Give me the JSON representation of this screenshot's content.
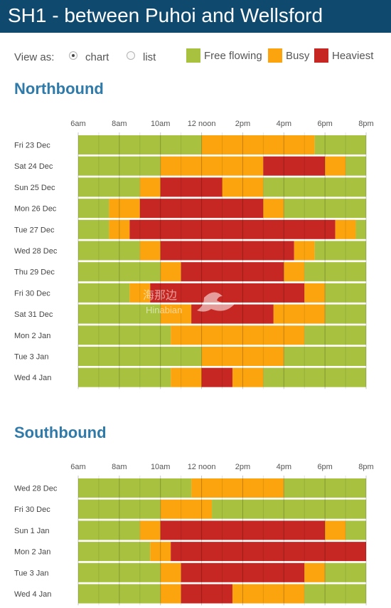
{
  "header": {
    "title": "SH1 - between Puhoi and Wellsford"
  },
  "view": {
    "label": "View as:",
    "options": [
      "chart",
      "list"
    ],
    "selected": "chart"
  },
  "legend": [
    {
      "label": "Free flowing",
      "color": "#a8c23f"
    },
    {
      "label": "Busy",
      "color": "#fca40e"
    },
    {
      "label": "Heaviest",
      "color": "#c62722"
    }
  ],
  "watermark": {
    "line1": "海那边",
    "line2": "Hinabian"
  },
  "chart_data": [
    {
      "type": "heatmap",
      "title": "Northbound",
      "x_ticks": [
        "6am",
        "8am",
        "10am",
        "12 noon",
        "2pm",
        "4pm",
        "6pm",
        "8pm"
      ],
      "x_range_hours": [
        6,
        20
      ],
      "levels": {
        "free": "Free flowing",
        "busy": "Busy",
        "heavy": "Heaviest"
      },
      "rows": [
        {
          "label": "Fri 23 Dec",
          "segments": [
            [
              6,
              12,
              "free"
            ],
            [
              12,
              17.5,
              "busy"
            ],
            [
              17.5,
              20,
              "free"
            ]
          ]
        },
        {
          "label": "Sat 24 Dec",
          "segments": [
            [
              6,
              10,
              "free"
            ],
            [
              10,
              15,
              "busy"
            ],
            [
              15,
              18,
              "heavy"
            ],
            [
              18,
              19,
              "busy"
            ],
            [
              19,
              20,
              "free"
            ]
          ]
        },
        {
          "label": "Sun 25 Dec",
          "segments": [
            [
              6,
              9,
              "free"
            ],
            [
              9,
              10,
              "busy"
            ],
            [
              10,
              13,
              "heavy"
            ],
            [
              13,
              15,
              "busy"
            ],
            [
              15,
              20,
              "free"
            ]
          ]
        },
        {
          "label": "Mon 26 Dec",
          "segments": [
            [
              6,
              7.5,
              "free"
            ],
            [
              7.5,
              9,
              "busy"
            ],
            [
              9,
              15,
              "heavy"
            ],
            [
              15,
              16,
              "busy"
            ],
            [
              16,
              20,
              "free"
            ]
          ]
        },
        {
          "label": "Tue 27 Dec",
          "segments": [
            [
              6,
              7.5,
              "free"
            ],
            [
              7.5,
              8.5,
              "busy"
            ],
            [
              8.5,
              18.5,
              "heavy"
            ],
            [
              18.5,
              19.5,
              "busy"
            ],
            [
              19.5,
              20,
              "free"
            ]
          ]
        },
        {
          "label": "Wed 28 Dec",
          "segments": [
            [
              6,
              9,
              "free"
            ],
            [
              9,
              10,
              "busy"
            ],
            [
              10,
              16.5,
              "heavy"
            ],
            [
              16.5,
              17.5,
              "busy"
            ],
            [
              17.5,
              20,
              "free"
            ]
          ]
        },
        {
          "label": "Thu 29 Dec",
          "segments": [
            [
              6,
              10,
              "free"
            ],
            [
              10,
              11,
              "busy"
            ],
            [
              11,
              16,
              "heavy"
            ],
            [
              16,
              17,
              "busy"
            ],
            [
              17,
              20,
              "free"
            ]
          ]
        },
        {
          "label": "Fri 30 Dec",
          "segments": [
            [
              6,
              8.5,
              "free"
            ],
            [
              8.5,
              9.5,
              "busy"
            ],
            [
              9.5,
              17,
              "heavy"
            ],
            [
              17,
              18,
              "busy"
            ],
            [
              18,
              20,
              "free"
            ]
          ]
        },
        {
          "label": "Sat 31 Dec",
          "segments": [
            [
              6,
              10,
              "free"
            ],
            [
              10,
              11.5,
              "busy"
            ],
            [
              11.5,
              15.5,
              "heavy"
            ],
            [
              15.5,
              18,
              "busy"
            ],
            [
              18,
              20,
              "free"
            ]
          ]
        },
        {
          "label": "Mon 2 Jan",
          "segments": [
            [
              6,
              10.5,
              "free"
            ],
            [
              10.5,
              17,
              "busy"
            ],
            [
              17,
              20,
              "free"
            ]
          ]
        },
        {
          "label": "Tue 3 Jan",
          "segments": [
            [
              6,
              12,
              "free"
            ],
            [
              12,
              16,
              "busy"
            ],
            [
              16,
              20,
              "free"
            ]
          ]
        },
        {
          "label": "Wed 4 Jan",
          "segments": [
            [
              6,
              10.5,
              "free"
            ],
            [
              10.5,
              12,
              "busy"
            ],
            [
              12,
              13.5,
              "heavy"
            ],
            [
              13.5,
              15,
              "busy"
            ],
            [
              15,
              20,
              "free"
            ]
          ]
        }
      ]
    },
    {
      "type": "heatmap",
      "title": "Southbound",
      "x_ticks": [
        "6am",
        "8am",
        "10am",
        "12 noon",
        "2pm",
        "4pm",
        "6pm",
        "8pm"
      ],
      "x_range_hours": [
        6,
        20
      ],
      "levels": {
        "free": "Free flowing",
        "busy": "Busy",
        "heavy": "Heaviest"
      },
      "rows": [
        {
          "label": "Wed 28 Dec",
          "segments": [
            [
              6,
              11.5,
              "free"
            ],
            [
              11.5,
              16,
              "busy"
            ],
            [
              16,
              20,
              "free"
            ]
          ]
        },
        {
          "label": "Fri 30 Dec",
          "segments": [
            [
              6,
              10,
              "free"
            ],
            [
              10,
              12.5,
              "busy"
            ],
            [
              12.5,
              20,
              "free"
            ]
          ]
        },
        {
          "label": "Sun 1 Jan",
          "segments": [
            [
              6,
              9,
              "free"
            ],
            [
              9,
              10,
              "busy"
            ],
            [
              10,
              18,
              "heavy"
            ],
            [
              18,
              19,
              "busy"
            ],
            [
              19,
              20,
              "free"
            ]
          ]
        },
        {
          "label": "Mon 2 Jan",
          "segments": [
            [
              6,
              9.5,
              "free"
            ],
            [
              9.5,
              10.5,
              "busy"
            ],
            [
              10.5,
              20,
              "heavy"
            ]
          ]
        },
        {
          "label": "Tue 3 Jan",
          "segments": [
            [
              6,
              10,
              "free"
            ],
            [
              10,
              11,
              "busy"
            ],
            [
              11,
              17,
              "heavy"
            ],
            [
              17,
              18,
              "busy"
            ],
            [
              18,
              20,
              "free"
            ]
          ]
        },
        {
          "label": "Wed 4 Jan",
          "segments": [
            [
              6,
              10,
              "free"
            ],
            [
              10,
              11,
              "busy"
            ],
            [
              11,
              13.5,
              "heavy"
            ],
            [
              13.5,
              17,
              "busy"
            ],
            [
              17,
              20,
              "free"
            ]
          ]
        }
      ]
    }
  ]
}
